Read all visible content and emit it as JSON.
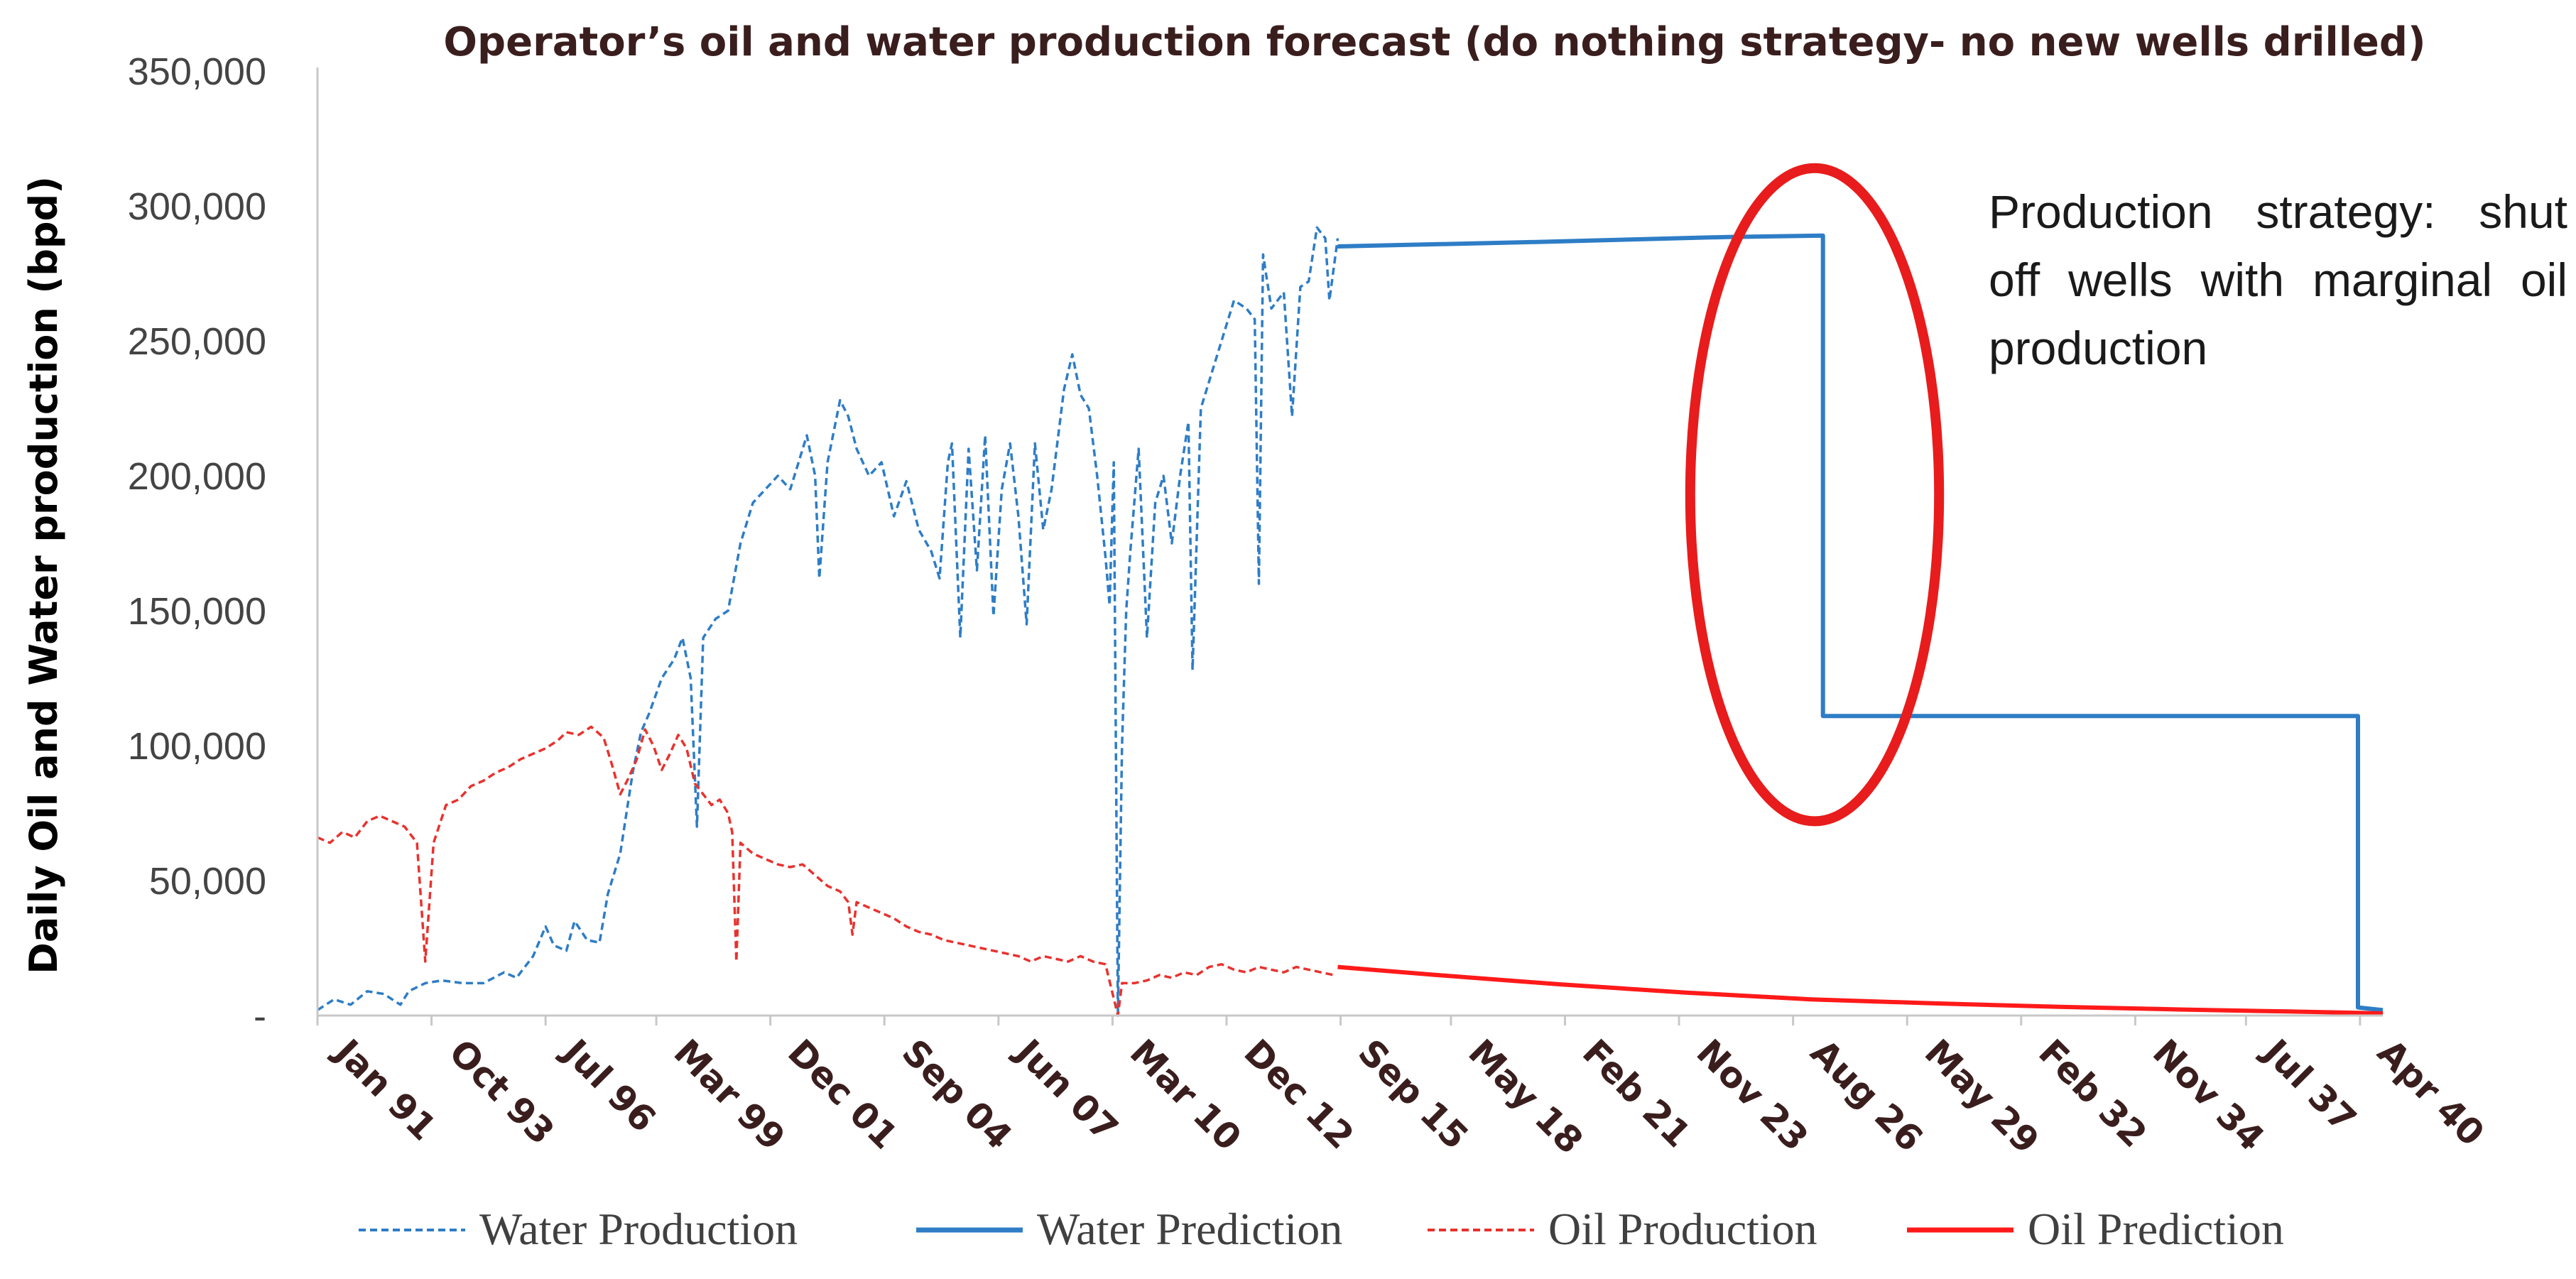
{
  "chart_data": {
    "type": "line",
    "title": "Operator’s oil and water production forecast (do nothing strategy- no new wells drilled)",
    "xlabel": "",
    "ylabel": "Daily Oil and Water production (bpd)",
    "ylim": [
      0,
      350000
    ],
    "yticks": [
      0,
      50000,
      100000,
      150000,
      200000,
      250000,
      300000,
      350000
    ],
    "ytick_labels": [
      "-",
      "50,000",
      "100,000",
      "150,000",
      "200,000",
      "250,000",
      "300,000",
      "350,000"
    ],
    "xlim": [
      1991.0,
      2040.8
    ],
    "x_unit": "decimal year",
    "xticks": [
      1991.0,
      1993.75,
      1996.5,
      1999.17,
      2001.92,
      2004.67,
      2007.42,
      2010.17,
      2012.92,
      2015.67,
      2018.33,
      2021.08,
      2023.83,
      2026.58,
      2029.33,
      2032.08,
      2034.83,
      2037.5,
      2040.25
    ],
    "xtick_labels": [
      "Jan 91",
      "Oct 93",
      "Jul 96",
      "Mar 99",
      "Dec 01",
      "Sep 04",
      "Jun 07",
      "Mar 10",
      "Dec 12",
      "Sep 15",
      "May 18",
      "Feb 21",
      "Nov 23",
      "Aug 26",
      "May 29",
      "Feb 32",
      "Nov 34",
      "Jul 37",
      "Apr 40"
    ],
    "series": [
      {
        "name": "Water Production",
        "color": "#2e7dc6",
        "style": "dashed",
        "points": [
          [
            1991.0,
            2000
          ],
          [
            1991.4,
            6000
          ],
          [
            1991.8,
            4000
          ],
          [
            1992.2,
            9000
          ],
          [
            1992.6,
            8000
          ],
          [
            1993.0,
            4000
          ],
          [
            1993.2,
            9000
          ],
          [
            1993.6,
            12000
          ],
          [
            1994.0,
            13000
          ],
          [
            1994.5,
            12000
          ],
          [
            1995.0,
            12000
          ],
          [
            1995.5,
            16000
          ],
          [
            1995.8,
            14000
          ],
          [
            1996.2,
            22000
          ],
          [
            1996.5,
            33000
          ],
          [
            1996.7,
            26000
          ],
          [
            1997.0,
            24000
          ],
          [
            1997.2,
            35000
          ],
          [
            1997.5,
            28000
          ],
          [
            1997.8,
            27000
          ],
          [
            1998.0,
            45000
          ],
          [
            1998.3,
            60000
          ],
          [
            1998.6,
            90000
          ],
          [
            1998.8,
            105000
          ],
          [
            1999.0,
            112000
          ],
          [
            1999.3,
            125000
          ],
          [
            1999.6,
            132000
          ],
          [
            1999.8,
            140000
          ],
          [
            2000.0,
            125000
          ],
          [
            2000.15,
            70000
          ],
          [
            2000.3,
            140000
          ],
          [
            2000.6,
            147000
          ],
          [
            2000.9,
            150000
          ],
          [
            2001.2,
            175000
          ],
          [
            2001.5,
            190000
          ],
          [
            2001.8,
            195000
          ],
          [
            2002.1,
            200000
          ],
          [
            2002.4,
            195000
          ],
          [
            2002.6,
            205000
          ],
          [
            2002.8,
            215000
          ],
          [
            2003.0,
            200000
          ],
          [
            2003.1,
            162000
          ],
          [
            2003.3,
            205000
          ],
          [
            2003.6,
            228000
          ],
          [
            2003.8,
            222000
          ],
          [
            2004.0,
            210000
          ],
          [
            2004.3,
            200000
          ],
          [
            2004.6,
            205000
          ],
          [
            2004.9,
            185000
          ],
          [
            2005.2,
            198000
          ],
          [
            2005.5,
            180000
          ],
          [
            2005.8,
            172000
          ],
          [
            2006.0,
            162000
          ],
          [
            2006.2,
            205000
          ],
          [
            2006.3,
            212000
          ],
          [
            2006.5,
            140000
          ],
          [
            2006.7,
            210000
          ],
          [
            2006.9,
            165000
          ],
          [
            2007.1,
            215000
          ],
          [
            2007.3,
            148000
          ],
          [
            2007.5,
            195000
          ],
          [
            2007.7,
            212000
          ],
          [
            2007.9,
            185000
          ],
          [
            2008.1,
            145000
          ],
          [
            2008.3,
            212000
          ],
          [
            2008.5,
            180000
          ],
          [
            2008.7,
            195000
          ],
          [
            2009.0,
            232000
          ],
          [
            2009.2,
            245000
          ],
          [
            2009.4,
            230000
          ],
          [
            2009.6,
            225000
          ],
          [
            2009.8,
            200000
          ],
          [
            2010.0,
            170000
          ],
          [
            2010.1,
            152000
          ],
          [
            2010.2,
            205000
          ],
          [
            2010.3,
            0
          ],
          [
            2010.4,
            100000
          ],
          [
            2010.5,
            150000
          ],
          [
            2010.6,
            172000
          ],
          [
            2010.8,
            210000
          ],
          [
            2011.0,
            140000
          ],
          [
            2011.2,
            190000
          ],
          [
            2011.4,
            200000
          ],
          [
            2011.6,
            175000
          ],
          [
            2011.8,
            200000
          ],
          [
            2012.0,
            220000
          ],
          [
            2012.1,
            128000
          ],
          [
            2012.3,
            225000
          ],
          [
            2012.6,
            240000
          ],
          [
            2012.9,
            255000
          ],
          [
            2013.1,
            265000
          ],
          [
            2013.4,
            262000
          ],
          [
            2013.6,
            258000
          ],
          [
            2013.7,
            160000
          ],
          [
            2013.8,
            282000
          ],
          [
            2014.0,
            262000
          ],
          [
            2014.3,
            268000
          ],
          [
            2014.5,
            222000
          ],
          [
            2014.7,
            270000
          ],
          [
            2014.9,
            272000
          ],
          [
            2015.1,
            292000
          ],
          [
            2015.3,
            288000
          ],
          [
            2015.4,
            265000
          ],
          [
            2015.6,
            288000
          ]
        ]
      },
      {
        "name": "Water Prediction",
        "color": "#2e7dc6",
        "style": "solid",
        "points": [
          [
            2015.6,
            285000
          ],
          [
            2020.0,
            286500
          ],
          [
            2025.0,
            288500
          ],
          [
            2027.3,
            289000
          ],
          [
            2027.3,
            111000
          ],
          [
            2032.0,
            111000
          ],
          [
            2035.0,
            111000
          ],
          [
            2040.2,
            111000
          ],
          [
            2040.2,
            3000
          ],
          [
            2040.8,
            2000
          ]
        ]
      },
      {
        "name": "Oil Production",
        "color": "#e8322e",
        "style": "dashed",
        "points": [
          [
            1991.0,
            66000
          ],
          [
            1991.3,
            64000
          ],
          [
            1991.6,
            68000
          ],
          [
            1991.9,
            66000
          ],
          [
            1992.2,
            72000
          ],
          [
            1992.5,
            74000
          ],
          [
            1992.8,
            72000
          ],
          [
            1993.1,
            70000
          ],
          [
            1993.4,
            64000
          ],
          [
            1993.6,
            20000
          ],
          [
            1993.8,
            64000
          ],
          [
            1994.1,
            78000
          ],
          [
            1994.4,
            80000
          ],
          [
            1994.7,
            85000
          ],
          [
            1995.0,
            87000
          ],
          [
            1995.3,
            90000
          ],
          [
            1995.6,
            92000
          ],
          [
            1995.9,
            95000
          ],
          [
            1996.2,
            97000
          ],
          [
            1996.5,
            99000
          ],
          [
            1996.8,
            102000
          ],
          [
            1997.0,
            105000
          ],
          [
            1997.3,
            104000
          ],
          [
            1997.6,
            107000
          ],
          [
            1997.9,
            103000
          ],
          [
            1998.1,
            93000
          ],
          [
            1998.3,
            82000
          ],
          [
            1998.5,
            88000
          ],
          [
            1998.7,
            95000
          ],
          [
            1998.9,
            106000
          ],
          [
            1999.1,
            100000
          ],
          [
            1999.3,
            91000
          ],
          [
            1999.5,
            97000
          ],
          [
            1999.7,
            104000
          ],
          [
            1999.9,
            99000
          ],
          [
            2000.1,
            86000
          ],
          [
            2000.3,
            82000
          ],
          [
            2000.5,
            78000
          ],
          [
            2000.7,
            80000
          ],
          [
            2000.9,
            75000
          ],
          [
            2001.0,
            68000
          ],
          [
            2001.1,
            20000
          ],
          [
            2001.2,
            64000
          ],
          [
            2001.5,
            60000
          ],
          [
            2001.8,
            58000
          ],
          [
            2002.1,
            56000
          ],
          [
            2002.4,
            55000
          ],
          [
            2002.7,
            56000
          ],
          [
            2003.0,
            52000
          ],
          [
            2003.3,
            48000
          ],
          [
            2003.6,
            46000
          ],
          [
            2003.8,
            42000
          ],
          [
            2003.9,
            30000
          ],
          [
            2004.0,
            42000
          ],
          [
            2004.3,
            40000
          ],
          [
            2004.6,
            38000
          ],
          [
            2004.9,
            36000
          ],
          [
            2005.2,
            33000
          ],
          [
            2005.5,
            31000
          ],
          [
            2005.8,
            30000
          ],
          [
            2006.1,
            28000
          ],
          [
            2006.4,
            27000
          ],
          [
            2006.7,
            26000
          ],
          [
            2007.0,
            25000
          ],
          [
            2007.3,
            24000
          ],
          [
            2007.6,
            23000
          ],
          [
            2007.9,
            22000
          ],
          [
            2008.2,
            20000
          ],
          [
            2008.5,
            22000
          ],
          [
            2008.8,
            21000
          ],
          [
            2009.1,
            20000
          ],
          [
            2009.4,
            22000
          ],
          [
            2009.7,
            20000
          ],
          [
            2010.0,
            19000
          ],
          [
            2010.3,
            0
          ],
          [
            2010.4,
            12000
          ],
          [
            2010.7,
            12000
          ],
          [
            2011.0,
            13000
          ],
          [
            2011.3,
            15000
          ],
          [
            2011.6,
            14000
          ],
          [
            2011.9,
            16000
          ],
          [
            2012.2,
            15000
          ],
          [
            2012.5,
            18000
          ],
          [
            2012.8,
            19000
          ],
          [
            2013.1,
            17000
          ],
          [
            2013.4,
            16000
          ],
          [
            2013.7,
            18000
          ],
          [
            2014.0,
            17000
          ],
          [
            2014.3,
            16000
          ],
          [
            2014.6,
            18000
          ],
          [
            2014.9,
            17000
          ],
          [
            2015.2,
            16000
          ],
          [
            2015.5,
            15000
          ]
        ]
      },
      {
        "name": "Oil Prediction",
        "color": "#ff1a1a",
        "style": "solid",
        "points": [
          [
            2015.6,
            18000
          ],
          [
            2018.0,
            15000
          ],
          [
            2021.0,
            11500
          ],
          [
            2024.0,
            8500
          ],
          [
            2027.0,
            6000
          ],
          [
            2030.0,
            4500
          ],
          [
            2033.0,
            3200
          ],
          [
            2036.0,
            2200
          ],
          [
            2038.5,
            1500
          ],
          [
            2040.2,
            1000
          ],
          [
            2040.8,
            800
          ]
        ]
      }
    ],
    "legend": [
      "Water Production",
      "Water Prediction",
      "Oil Production",
      "Oil Prediction"
    ],
    "legend_position": "bottom",
    "annotation": {
      "text": "Production strategy: shut off wells with marginal oil production",
      "center_x": 2027.1,
      "center_y": 193000,
      "half_width_years": 3.0,
      "half_height_value": 121000,
      "color": "#e81c1c"
    }
  }
}
